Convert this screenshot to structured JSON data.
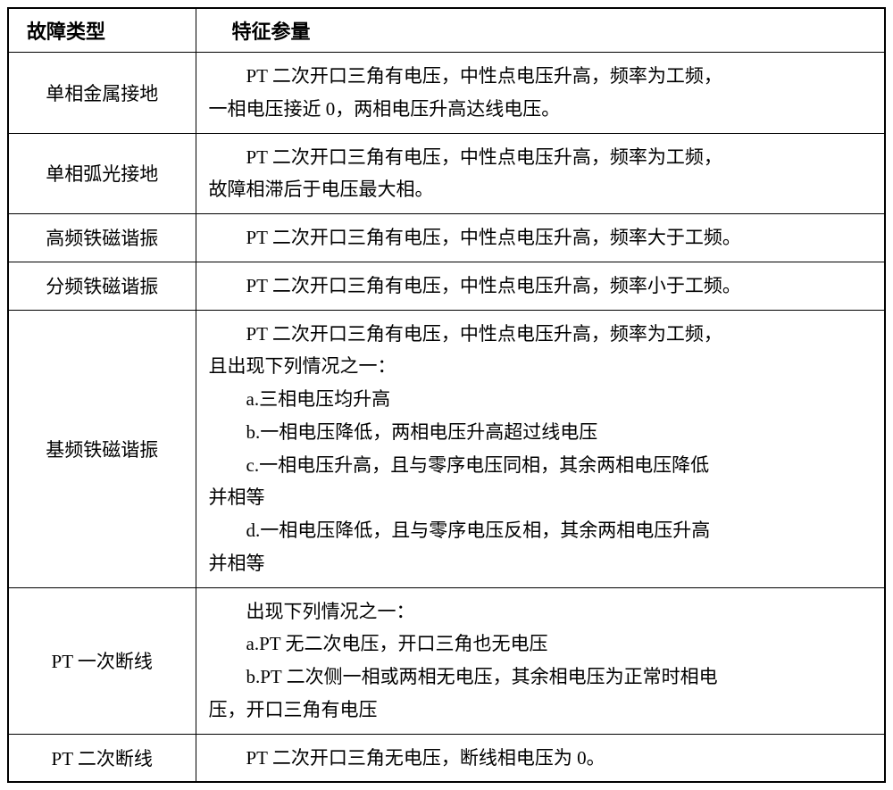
{
  "table": {
    "headers": {
      "fault_type": "故障类型",
      "feature_param": "特征参量"
    },
    "rows": [
      {
        "type": "单相金属接地",
        "feature_lines": [
          {
            "text": "PT 二次开口三角有电压，中性点电压升高，频率为工频，",
            "indent": true
          },
          {
            "text": "一相电压接近 0，两相电压升高达线电压。",
            "indent": false
          }
        ]
      },
      {
        "type": "单相弧光接地",
        "feature_lines": [
          {
            "text": "PT 二次开口三角有电压，中性点电压升高，频率为工频，",
            "indent": true
          },
          {
            "text": "故障相滞后于电压最大相。",
            "indent": false
          }
        ]
      },
      {
        "type": "高频铁磁谐振",
        "feature_lines": [
          {
            "text": "PT 二次开口三角有电压，中性点电压升高，频率大于工频。",
            "indent": true
          }
        ]
      },
      {
        "type": "分频铁磁谐振",
        "feature_lines": [
          {
            "text": "PT 二次开口三角有电压，中性点电压升高，频率小于工频。",
            "indent": true
          }
        ]
      },
      {
        "type": "基频铁磁谐振",
        "feature_lines": [
          {
            "text": "PT 二次开口三角有电压，中性点电压升高，频率为工频，",
            "indent": true
          },
          {
            "text": "且出现下列情况之一：",
            "indent": false
          },
          {
            "text": "a.三相电压均升高",
            "indent": true
          },
          {
            "text": "b.一相电压降低，两相电压升高超过线电压",
            "indent": true
          },
          {
            "text": "c.一相电压升高，且与零序电压同相，其余两相电压降低",
            "indent": true
          },
          {
            "text": "并相等",
            "indent": false
          },
          {
            "text": "d.一相电压降低，且与零序电压反相，其余两相电压升高",
            "indent": true
          },
          {
            "text": "并相等",
            "indent": false
          }
        ]
      },
      {
        "type": "PT 一次断线",
        "feature_lines": [
          {
            "text": "出现下列情况之一：",
            "indent": true
          },
          {
            "text": "a.PT 无二次电压，开口三角也无电压",
            "indent": true
          },
          {
            "text": "b.PT 二次侧一相或两相无电压，其余相电压为正常时相电",
            "indent": true
          },
          {
            "text": "压，开口三角有电压",
            "indent": false
          }
        ]
      },
      {
        "type": "PT 二次断线",
        "feature_lines": [
          {
            "text": "PT 二次开口三角无电压，断线相电压为 0。",
            "indent": true
          }
        ]
      }
    ],
    "styling": {
      "border_color": "#000000",
      "border_width_outer": 2,
      "border_width_inner": 1.5,
      "background_color": "#ffffff",
      "header_font_weight": "bold",
      "header_font_size": 22,
      "cell_font_size": 21,
      "line_height": 1.75,
      "font_family": "SimSun",
      "col_type_width": 210,
      "text_indent_em": 2,
      "type_cell_align": "center",
      "feature_cell_align": "left"
    }
  }
}
